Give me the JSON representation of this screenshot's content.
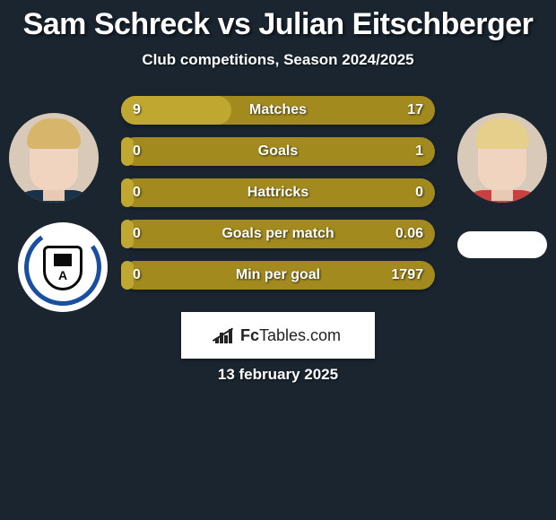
{
  "title": "Sam Schreck vs Julian Eitschberger",
  "subtitle": "Club competitions, Season 2024/2025",
  "date": "13 february 2025",
  "logo_text_bold": "Fc",
  "logo_text_rest": "Tables.com",
  "colors": {
    "background": "#1a2530",
    "pill_bg": "#a28a1f",
    "pill_fill": "#c0a830",
    "text": "#ffffff",
    "logo_bg": "#ffffff"
  },
  "rows": [
    {
      "label": "Matches",
      "left": "9",
      "right": "17",
      "fill_pct": 35
    },
    {
      "label": "Goals",
      "left": "0",
      "right": "1",
      "fill_pct": 4
    },
    {
      "label": "Hattricks",
      "left": "0",
      "right": "0",
      "fill_pct": 4
    },
    {
      "label": "Goals per match",
      "left": "0",
      "right": "0.06",
      "fill_pct": 4
    },
    {
      "label": "Min per goal",
      "left": "0",
      "right": "1797",
      "fill_pct": 4
    }
  ],
  "logo_bars": [
    6,
    12,
    9,
    16
  ]
}
